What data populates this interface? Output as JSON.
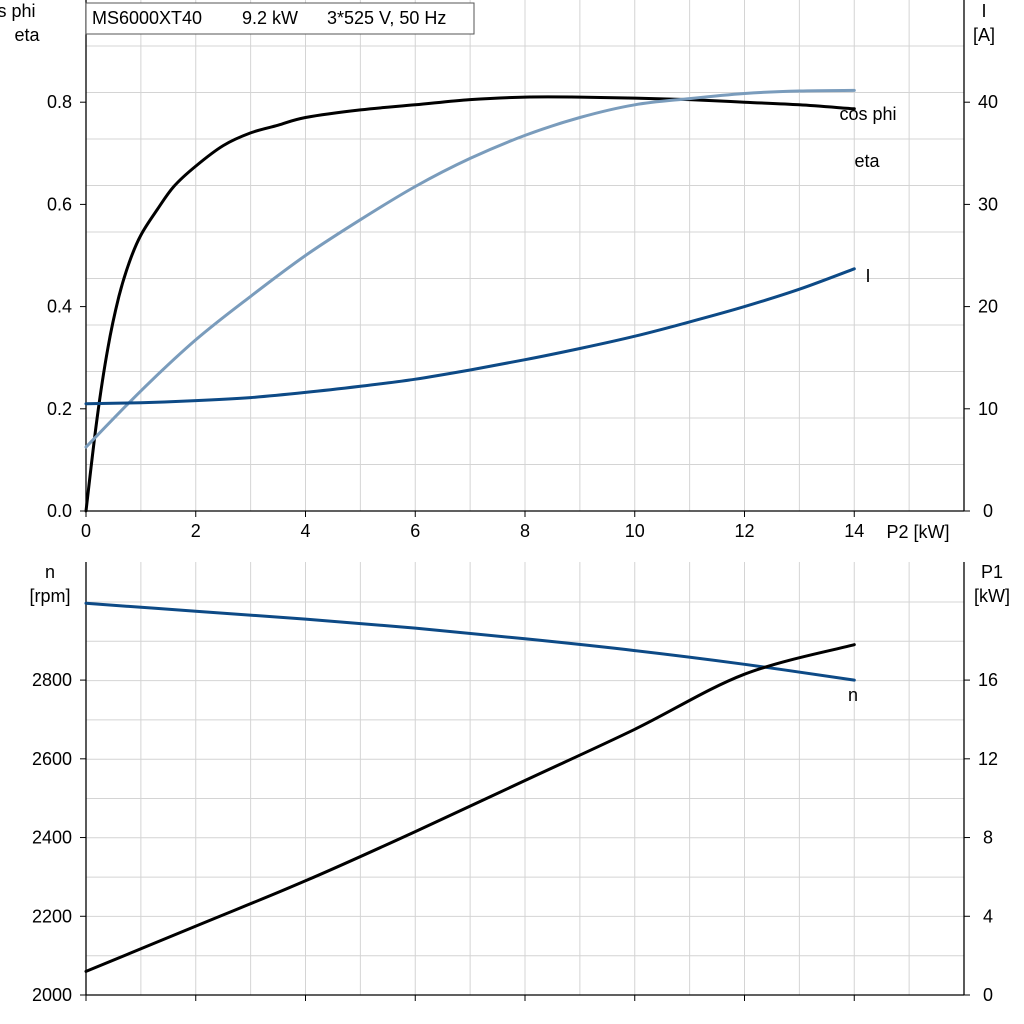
{
  "header": {
    "model": "MS6000XT40",
    "power": "9.2 kW",
    "supply": "3*525 V, 50 Hz"
  },
  "colors": {
    "eta": "#000000",
    "cos_phi": "#7a9cbc",
    "current": "#0d4a86",
    "speed": "#0d4a86",
    "p1": "#000000",
    "grid": "#d4d4d4"
  },
  "chart_data": [
    {
      "type": "line",
      "grid": true,
      "xlabel": "P2 [kW]",
      "ylabel_left_lines": [
        "cos phi",
        "eta"
      ],
      "ylabel_right_lines": [
        "I",
        "[A]"
      ],
      "xlim": [
        0,
        16
      ],
      "ylim_left": [
        0,
        1.0
      ],
      "ylim_right": [
        0,
        50
      ],
      "x_ticks": [
        0,
        2,
        4,
        6,
        8,
        10,
        12,
        14
      ],
      "y_ticks_left": [
        "0.0",
        "0.2",
        "0.4",
        "0.6",
        "0.8"
      ],
      "y_ticks_right": [
        "0",
        "10",
        "20",
        "30",
        "40"
      ],
      "series": [
        {
          "name": "eta",
          "key": "eta",
          "axis": "left",
          "x": [
            0,
            0.2,
            0.4,
            0.6,
            0.8,
            1.0,
            1.3,
            1.6,
            2.0,
            2.5,
            3.0,
            3.5,
            4.0,
            5.0,
            6.0,
            7.0,
            8.0,
            9.0,
            10.0,
            11.0,
            12.0,
            13.0,
            14.0
          ],
          "y": [
            0.0,
            0.18,
            0.32,
            0.42,
            0.49,
            0.54,
            0.59,
            0.635,
            0.675,
            0.715,
            0.74,
            0.755,
            0.77,
            0.785,
            0.795,
            0.805,
            0.81,
            0.81,
            0.808,
            0.805,
            0.8,
            0.795,
            0.787
          ]
        },
        {
          "name": "cos phi",
          "key": "cos_phi",
          "axis": "left",
          "x": [
            0,
            1,
            2,
            3,
            4,
            5,
            6,
            7,
            8,
            9,
            10,
            11,
            12,
            13,
            14
          ],
          "y": [
            0.125,
            0.235,
            0.335,
            0.42,
            0.5,
            0.57,
            0.635,
            0.69,
            0.735,
            0.77,
            0.795,
            0.807,
            0.817,
            0.822,
            0.823
          ]
        },
        {
          "name": "I",
          "key": "current",
          "axis": "right",
          "x": [
            0,
            1,
            2,
            3,
            4,
            5,
            6,
            7,
            8,
            9,
            10,
            11,
            12,
            13,
            14
          ],
          "y": [
            10.5,
            10.6,
            10.8,
            11.1,
            11.6,
            12.2,
            12.9,
            13.8,
            14.8,
            15.9,
            17.1,
            18.5,
            20.0,
            21.7,
            23.7
          ]
        }
      ]
    },
    {
      "type": "line",
      "grid": true,
      "xlabel": "",
      "ylabel_left_lines": [
        "n",
        "[rpm]"
      ],
      "ylabel_right_lines": [
        "P1",
        "[kW]"
      ],
      "xlim": [
        0,
        16
      ],
      "ylim_left": [
        2000,
        3100
      ],
      "ylim_right": [
        0,
        22
      ],
      "x_ticks": [
        0,
        2,
        4,
        6,
        8,
        10,
        12,
        14
      ],
      "y_ticks_left": [
        "2000",
        "2200",
        "2400",
        "2600",
        "2800"
      ],
      "y_ticks_right": [
        "0",
        "4",
        "8",
        "12",
        "16"
      ],
      "series": [
        {
          "name": "n",
          "key": "speed",
          "axis": "left",
          "x": [
            0,
            2,
            4,
            6,
            8,
            10,
            12,
            14
          ],
          "y": [
            2995,
            2975,
            2955,
            2932,
            2905,
            2875,
            2840,
            2800
          ]
        },
        {
          "name": "",
          "key": "p1",
          "axis": "right",
          "x": [
            0,
            2,
            4,
            6,
            8,
            10,
            12,
            14
          ],
          "y": [
            1.2,
            3.5,
            5.8,
            8.3,
            10.9,
            13.5,
            16.3,
            17.8
          ]
        }
      ]
    }
  ]
}
